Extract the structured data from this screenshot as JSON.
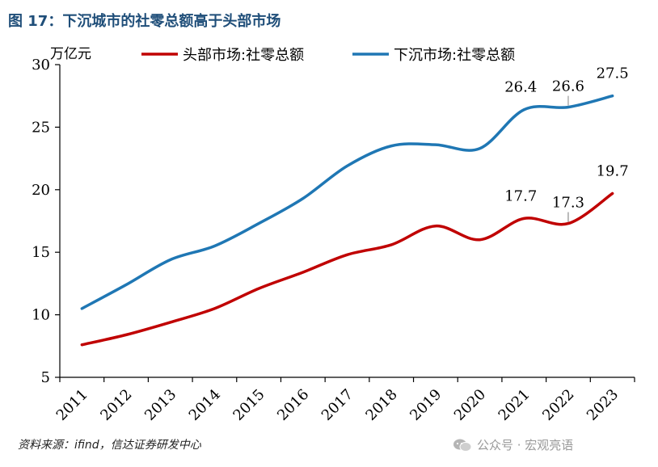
{
  "title": "图 17：下沉城市的社零总额高于头部市场",
  "source": "资料来源：ifind，信达证券研发中心",
  "watermark": "公众号 · 宏观亮语",
  "chart_data": {
    "type": "line",
    "unit_label": "万亿元",
    "categories": [
      "2011",
      "2012",
      "2013",
      "2014",
      "2015",
      "2016",
      "2017",
      "2018",
      "2019",
      "2020",
      "2021",
      "2022",
      "2023"
    ],
    "ylim": [
      5,
      30
    ],
    "yticks": [
      5,
      10,
      15,
      20,
      25,
      30
    ],
    "legend_position": "top",
    "series": [
      {
        "name": "头部市场:社零总额",
        "color": "#c00000",
        "values": [
          7.6,
          8.4,
          9.4,
          10.5,
          12.1,
          13.4,
          14.8,
          15.6,
          17.1,
          16.0,
          17.7,
          17.3,
          19.7
        ],
        "labels": [
          {
            "index": 10,
            "text": "17.7"
          },
          {
            "index": 11,
            "text": "17.3"
          },
          {
            "index": 12,
            "text": "19.7"
          }
        ]
      },
      {
        "name": "下沉市场:社零总额",
        "color": "#1f77b4",
        "values": [
          10.5,
          12.4,
          14.4,
          15.5,
          17.3,
          19.3,
          21.9,
          23.5,
          23.6,
          23.3,
          26.4,
          26.6,
          27.5
        ],
        "labels": [
          {
            "index": 10,
            "text": "26.4"
          },
          {
            "index": 11,
            "text": "26.6"
          },
          {
            "index": 12,
            "text": "27.5"
          }
        ]
      }
    ]
  }
}
